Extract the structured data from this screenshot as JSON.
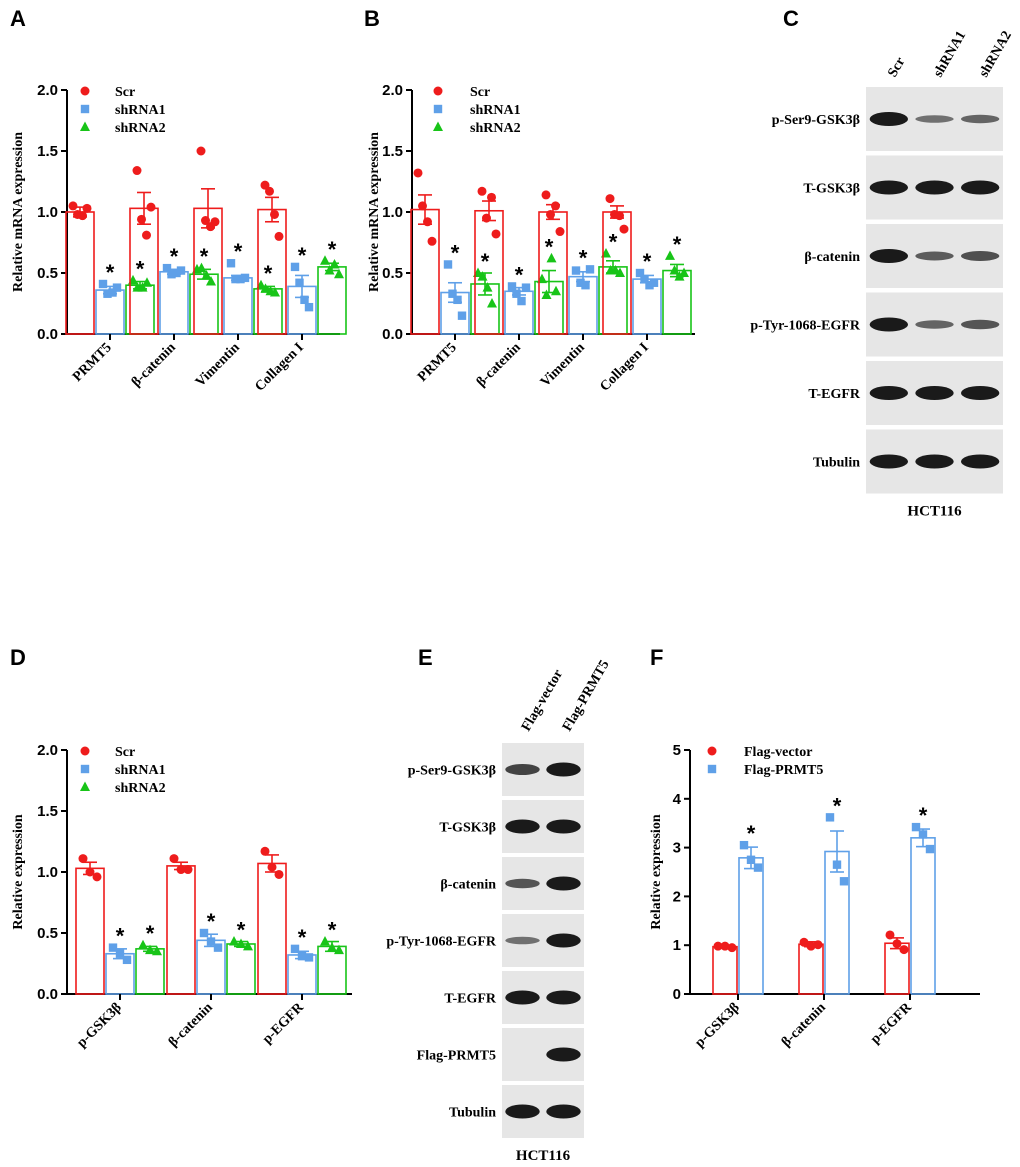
{
  "panels": {
    "A": "A",
    "B": "B",
    "C": "C",
    "D": "D",
    "E": "E",
    "F": "F"
  },
  "colors": {
    "scr": "#ee1c1c",
    "shrna1": "#5fa0e8",
    "shrna2": "#18c418",
    "flag_vector": "#ee1c1c",
    "flag_prmt5": "#5fa0e8",
    "blot_bg": "#e6e6e6",
    "band": "#1a1a1a"
  },
  "chart_data": [
    {
      "id": "A",
      "type": "bar",
      "ylabel": "Relative mRNA expression",
      "ylim": [
        0,
        2.0
      ],
      "yticks": [
        "0.0",
        "0.5",
        "1.0",
        "1.5",
        "2.0"
      ],
      "categories": [
        "PRMT5",
        "β-catenin",
        "Vimentin",
        "Collagen I"
      ],
      "series": [
        {
          "name": "Scr",
          "marker": "circle",
          "color": "#ee1c1c",
          "values": [
            1.0,
            1.03,
            1.03,
            1.02
          ],
          "errors": [
            0.04,
            0.13,
            0.16,
            0.1
          ],
          "points": [
            [
              1.05,
              0.98,
              0.97,
              1.03
            ],
            [
              1.34,
              0.94,
              0.81,
              1.04
            ],
            [
              1.5,
              0.93,
              0.88,
              0.92
            ],
            [
              1.22,
              1.17,
              0.98,
              0.8
            ]
          ]
        },
        {
          "name": "shRNA1",
          "marker": "square",
          "color": "#5fa0e8",
          "values": [
            0.36,
            0.51,
            0.46,
            0.39
          ],
          "errors": [
            0.03,
            0.02,
            0.02,
            0.09
          ],
          "points": [
            [
              0.41,
              0.33,
              0.34,
              0.38
            ],
            [
              0.54,
              0.49,
              0.5,
              0.52
            ],
            [
              0.58,
              0.45,
              0.45,
              0.46
            ],
            [
              0.55,
              0.42,
              0.28,
              0.22
            ]
          ]
        },
        {
          "name": "shRNA2",
          "marker": "triangle",
          "color": "#18c418",
          "values": [
            0.4,
            0.49,
            0.37,
            0.55
          ],
          "errors": [
            0.03,
            0.04,
            0.02,
            0.03
          ],
          "points": [
            [
              0.44,
              0.38,
              0.38,
              0.42
            ],
            [
              0.53,
              0.54,
              0.48,
              0.43
            ],
            [
              0.4,
              0.37,
              0.35,
              0.34
            ],
            [
              0.6,
              0.52,
              0.57,
              0.49
            ]
          ]
        }
      ],
      "significance": "*"
    },
    {
      "id": "B",
      "type": "bar",
      "ylabel": "Relative mRNA expression",
      "ylim": [
        0,
        2.0
      ],
      "yticks": [
        "0.0",
        "0.5",
        "1.0",
        "1.5",
        "2.0"
      ],
      "categories": [
        "PRMT5",
        "β-catenin",
        "Vimentin",
        "Collagen I"
      ],
      "series": [
        {
          "name": "Scr",
          "marker": "circle",
          "color": "#ee1c1c",
          "values": [
            1.02,
            1.01,
            1.0,
            1.0
          ],
          "errors": [
            0.12,
            0.08,
            0.06,
            0.05
          ],
          "points": [
            [
              1.32,
              1.05,
              0.92,
              0.76
            ],
            [
              1.17,
              0.95,
              1.12,
              0.82
            ],
            [
              1.14,
              0.98,
              1.05,
              0.84
            ],
            [
              1.11,
              0.98,
              0.97,
              0.86
            ]
          ]
        },
        {
          "name": "shRNA1",
          "marker": "square",
          "color": "#5fa0e8",
          "values": [
            0.34,
            0.35,
            0.47,
            0.45
          ],
          "errors": [
            0.08,
            0.03,
            0.04,
            0.03
          ],
          "points": [
            [
              0.57,
              0.33,
              0.28,
              0.15
            ],
            [
              0.39,
              0.33,
              0.27,
              0.38
            ],
            [
              0.52,
              0.42,
              0.4,
              0.53
            ],
            [
              0.5,
              0.45,
              0.4,
              0.42
            ]
          ]
        },
        {
          "name": "shRNA2",
          "marker": "triangle",
          "color": "#18c418",
          "values": [
            0.41,
            0.43,
            0.55,
            0.52
          ],
          "errors": [
            0.09,
            0.09,
            0.05,
            0.05
          ],
          "points": [
            [
              0.5,
              0.47,
              0.38,
              0.25
            ],
            [
              0.45,
              0.32,
              0.62,
              0.35
            ],
            [
              0.66,
              0.52,
              0.52,
              0.5
            ],
            [
              0.64,
              0.52,
              0.47,
              0.5
            ]
          ]
        }
      ],
      "significance": "*"
    },
    {
      "id": "D",
      "type": "bar",
      "ylabel": "Relative expression",
      "ylim": [
        0,
        2.0
      ],
      "yticks": [
        "0.0",
        "0.5",
        "1.0",
        "1.5",
        "2.0"
      ],
      "categories": [
        "p-GSK3β",
        "β-catenin",
        "p-EGFR"
      ],
      "series": [
        {
          "name": "Scr",
          "marker": "circle",
          "color": "#ee1c1c",
          "values": [
            1.03,
            1.05,
            1.07
          ],
          "errors": [
            0.05,
            0.03,
            0.07
          ],
          "points": [
            [
              1.11,
              1.0,
              0.96
            ],
            [
              1.11,
              1.02,
              1.02
            ],
            [
              1.17,
              1.04,
              0.98
            ]
          ]
        },
        {
          "name": "shRNA1",
          "marker": "square",
          "color": "#5fa0e8",
          "values": [
            0.33,
            0.44,
            0.32
          ],
          "errors": [
            0.04,
            0.05,
            0.03
          ],
          "points": [
            [
              0.38,
              0.33,
              0.28
            ],
            [
              0.5,
              0.43,
              0.38
            ],
            [
              0.37,
              0.31,
              0.3
            ]
          ]
        },
        {
          "name": "shRNA2",
          "marker": "triangle",
          "color": "#18c418",
          "values": [
            0.37,
            0.41,
            0.39
          ],
          "errors": [
            0.02,
            0.02,
            0.04
          ],
          "points": [
            [
              0.4,
              0.36,
              0.35
            ],
            [
              0.43,
              0.41,
              0.39
            ],
            [
              0.43,
              0.38,
              0.36
            ]
          ]
        }
      ],
      "significance": "*"
    },
    {
      "id": "F",
      "type": "bar",
      "ylabel": "Relative expression",
      "ylim": [
        0,
        5
      ],
      "yticks": [
        "0",
        "1",
        "2",
        "3",
        "4",
        "5"
      ],
      "categories": [
        "p-GSK3β",
        "β-catenin",
        "p-EGFR"
      ],
      "series": [
        {
          "name": "Flag-vector",
          "marker": "circle",
          "color": "#ee1c1c",
          "values": [
            0.97,
            1.02,
            1.04
          ],
          "errors": [
            0.02,
            0.05,
            0.11
          ],
          "points": [
            [
              0.98,
              0.98,
              0.95
            ],
            [
              1.06,
              0.98,
              1.01
            ],
            [
              1.21,
              1.03,
              0.91
            ]
          ]
        },
        {
          "name": "Flag-PRMT5",
          "marker": "square",
          "color": "#5fa0e8",
          "values": [
            2.79,
            2.92,
            3.2
          ],
          "errors": [
            0.22,
            0.42,
            0.18
          ],
          "points": [
            [
              3.05,
              2.75,
              2.59
            ],
            [
              3.62,
              2.65,
              2.31
            ],
            [
              3.42,
              3.27,
              2.97
            ]
          ]
        }
      ],
      "significance": "*"
    }
  ],
  "blot_C": {
    "lanes": [
      "Scr",
      "shRNA1",
      "shRNA2"
    ],
    "rows": [
      {
        "label": "p-Ser9-GSK3β",
        "intensity": [
          1.0,
          0.35,
          0.45
        ]
      },
      {
        "label": "T-GSK3β",
        "intensity": [
          1.0,
          1.0,
          1.0
        ]
      },
      {
        "label": "β-catenin",
        "intensity": [
          1.0,
          0.5,
          0.6
        ]
      },
      {
        "label": "p-Tyr-1068-EGFR",
        "intensity": [
          1.0,
          0.45,
          0.55
        ]
      },
      {
        "label": "T-EGFR",
        "intensity": [
          1.0,
          1.0,
          1.0
        ]
      },
      {
        "label": "Tubulin",
        "intensity": [
          1.0,
          1.0,
          1.0
        ]
      }
    ],
    "cell_line": "HCT116"
  },
  "blot_E": {
    "lanes": [
      "Flag-vector",
      "Flag-PRMT5"
    ],
    "rows": [
      {
        "label": "p-Ser9-GSK3β",
        "intensity": [
          0.7,
          1.0
        ]
      },
      {
        "label": "T-GSK3β",
        "intensity": [
          1.0,
          1.0
        ]
      },
      {
        "label": "β-catenin",
        "intensity": [
          0.55,
          1.0
        ]
      },
      {
        "label": "p-Tyr-1068-EGFR",
        "intensity": [
          0.35,
          1.0
        ]
      },
      {
        "label": "T-EGFR",
        "intensity": [
          1.0,
          1.0
        ]
      },
      {
        "label": "Flag-PRMT5",
        "intensity": [
          0.0,
          1.0
        ]
      },
      {
        "label": "Tubulin",
        "intensity": [
          1.0,
          1.0
        ]
      }
    ],
    "cell_line": "HCT116"
  }
}
